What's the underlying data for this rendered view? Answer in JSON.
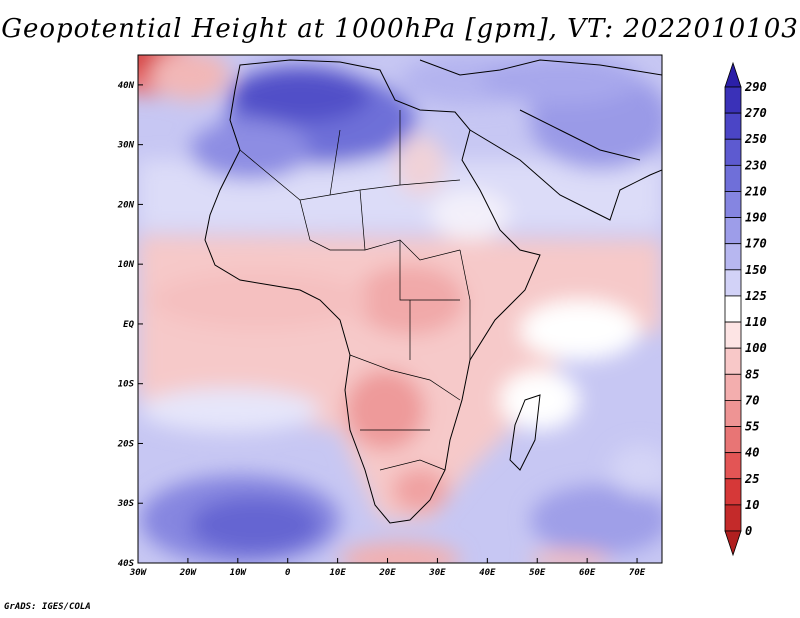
{
  "title": "Geopotential Height at 1000hPa [gpm], VT: 2022010103",
  "footer": "GrADS: IGES/COLA",
  "map": {
    "region": "Africa",
    "lon_range": [
      -30,
      75
    ],
    "lat_range": [
      -40,
      45
    ],
    "lat_labels": [
      "40N",
      "30N",
      "20N",
      "10N",
      "EQ",
      "10S",
      "20S",
      "30S",
      "40S"
    ],
    "lon_labels": [
      "30W",
      "20W",
      "10W",
      "0",
      "10E",
      "20E",
      "30E",
      "40E",
      "50E",
      "60E",
      "70E"
    ]
  },
  "colorbar": {
    "labels": [
      "290",
      "270",
      "250",
      "230",
      "210",
      "190",
      "170",
      "150",
      "125",
      "110",
      "100",
      "85",
      "70",
      "55",
      "40",
      "25",
      "10",
      "0"
    ],
    "colors": [
      "#2b1fa8",
      "#3a31b8",
      "#4b45c6",
      "#5d5ad0",
      "#6f6fd9",
      "#8585e1",
      "#9d9de9",
      "#b7b7f0",
      "#d2d2f7",
      "#ffffff",
      "#fde4e4",
      "#f8c8c8",
      "#f3aeae",
      "#ee9494",
      "#e87575",
      "#e35555",
      "#d63838",
      "#c42a2a",
      "#b01f1f"
    ]
  }
}
